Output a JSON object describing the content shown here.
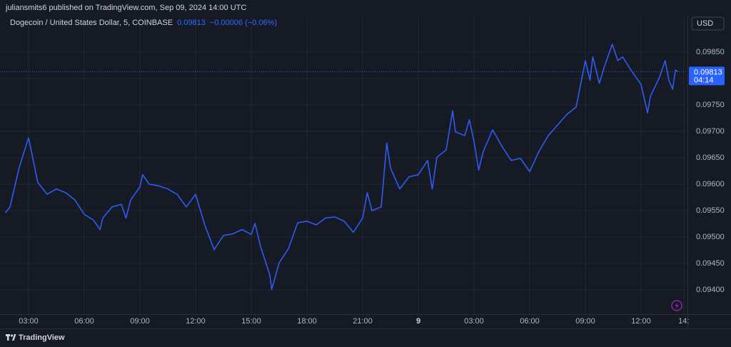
{
  "header": {
    "published": "juliansmits6 published on TradingView.com, Sep 09, 2024 14:00 UTC",
    "price": "0.09813",
    "change": "−0.00006 (−0.06%)",
    "currency": "USD",
    "countdown": "04:14",
    "brand": "TradingView"
  },
  "chart_data": {
    "type": "line",
    "x": [
      1.75,
      2,
      2.5,
      3,
      3.5,
      4,
      4.5,
      5,
      5.5,
      6,
      6.5,
      6.85,
      7,
      7.5,
      8,
      8.25,
      8.5,
      9,
      9.15,
      9.5,
      10,
      10.5,
      11,
      11.5,
      12,
      12.5,
      13,
      13.5,
      14,
      14.5,
      15,
      15.2,
      15.5,
      16,
      16.1,
      16.5,
      17,
      17.5,
      18,
      18.5,
      19,
      19.5,
      20,
      20.5,
      21,
      21.25,
      21.5,
      22,
      22.3,
      22.5,
      23,
      23.5,
      24,
      24.5,
      24.75,
      25,
      25.5,
      25.85,
      26,
      26.5,
      26.75,
      27,
      27.25,
      27.5,
      28,
      28.5,
      29,
      29.5,
      30,
      30.5,
      31,
      31.5,
      32,
      32.5,
      33,
      33.25,
      33.4,
      33.75,
      34,
      34.45,
      34.75,
      35,
      35.5,
      36,
      36.35,
      36.5,
      37,
      37.3,
      37.5,
      37.7,
      37.85,
      38
    ],
    "series": [
      {
        "name": "Dogecoin / United States Dollar, 5, COINBASE",
        "color": "#2f5cf0",
        "values": [
          0.09546,
          0.09557,
          0.09632,
          0.09688,
          0.09603,
          0.09581,
          0.09591,
          0.09584,
          0.0957,
          0.09543,
          0.09532,
          0.09514,
          0.09536,
          0.09557,
          0.09562,
          0.09536,
          0.0957,
          0.09595,
          0.09618,
          0.096,
          0.09597,
          0.09591,
          0.09581,
          0.09557,
          0.09581,
          0.09522,
          0.09476,
          0.09503,
          0.09506,
          0.09514,
          0.09505,
          0.09526,
          0.09482,
          0.09428,
          0.09401,
          0.09451,
          0.09478,
          0.09527,
          0.0953,
          0.09523,
          0.09536,
          0.09538,
          0.0953,
          0.09509,
          0.09536,
          0.09584,
          0.0955,
          0.09557,
          0.09678,
          0.09631,
          0.09591,
          0.09614,
          0.09618,
          0.09645,
          0.09591,
          0.09651,
          0.09665,
          0.09739,
          0.09699,
          0.09692,
          0.09722,
          0.09681,
          0.09627,
          0.09662,
          0.09703,
          0.09672,
          0.09645,
          0.09649,
          0.09624,
          0.09662,
          0.09692,
          0.09712,
          0.09732,
          0.09746,
          0.09834,
          0.09797,
          0.09841,
          0.09791,
          0.0982,
          0.09865,
          0.09834,
          0.09841,
          0.09814,
          0.09789,
          0.09735,
          0.09766,
          0.09803,
          0.09834,
          0.09797,
          0.0978,
          0.09816,
          0.09813
        ]
      }
    ],
    "last_value": 0.09813,
    "xlim": [
      1.75,
      38.5
    ],
    "ylim": [
      0.09354,
      0.09919
    ],
    "xticks": [
      {
        "value": 3,
        "label": "03:00"
      },
      {
        "value": 6,
        "label": "06:00"
      },
      {
        "value": 9,
        "label": "09:00"
      },
      {
        "value": 12,
        "label": "12:00"
      },
      {
        "value": 15,
        "label": "15:00"
      },
      {
        "value": 18,
        "label": "18:00"
      },
      {
        "value": 21,
        "label": "21:00"
      },
      {
        "value": 24,
        "label": "9"
      },
      {
        "value": 27,
        "label": "03:00"
      },
      {
        "value": 30,
        "label": "06:00"
      },
      {
        "value": 33,
        "label": "09:00"
      },
      {
        "value": 36,
        "label": "12:00"
      },
      {
        "value": 38.3,
        "label": "14:"
      }
    ],
    "yticks": [
      {
        "value": 0.094,
        "label": "0.09400"
      },
      {
        "value": 0.0945,
        "label": "0.09450"
      },
      {
        "value": 0.095,
        "label": "0.09500"
      },
      {
        "value": 0.0955,
        "label": "0.09550"
      },
      {
        "value": 0.096,
        "label": "0.09600"
      },
      {
        "value": 0.0965,
        "label": "0.09650"
      },
      {
        "value": 0.097,
        "label": "0.09700"
      },
      {
        "value": 0.0975,
        "label": "0.09750"
      },
      {
        "value": 0.098,
        "label": "0.09800"
      },
      {
        "value": 0.0985,
        "label": "0.09850"
      }
    ],
    "grid": true
  }
}
